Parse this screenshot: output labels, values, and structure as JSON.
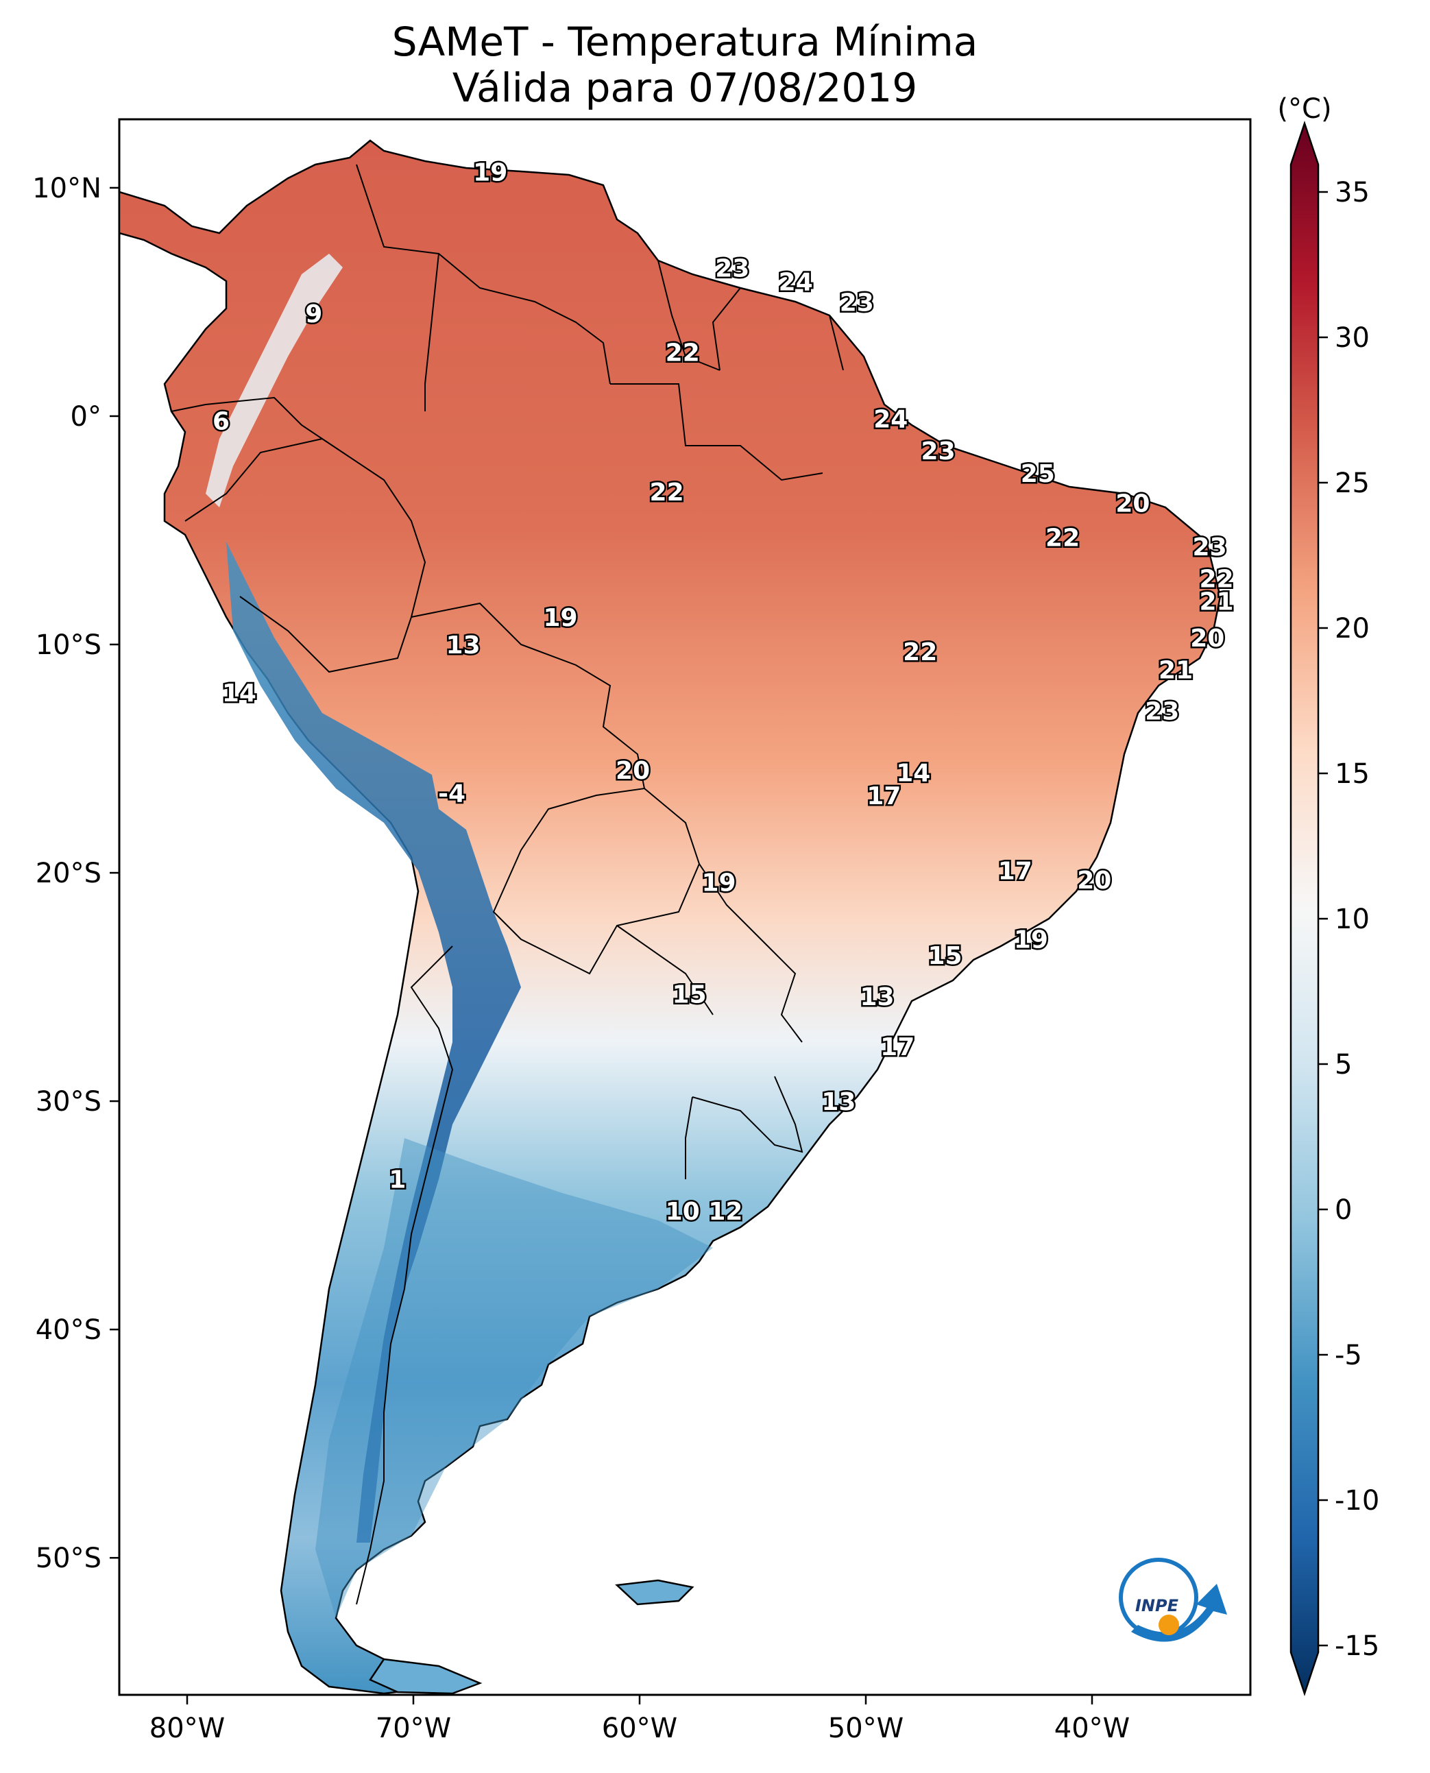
{
  "title": {
    "line1": "SAMeT - Temperatura Mínima",
    "line2": "Válida para 07/08/2019"
  },
  "colorbar": {
    "unit": "(°C)",
    "ticks": [
      "35",
      "30",
      "25",
      "20",
      "15",
      "10",
      "5",
      "0",
      "-5",
      "-10",
      "-15"
    ],
    "tick_values": [
      35,
      30,
      25,
      20,
      15,
      10,
      5,
      0,
      -5,
      -10,
      -15
    ],
    "range": [
      -17,
      37
    ],
    "colors": [
      "#053061",
      "#2166ac",
      "#4393c3",
      "#92c5de",
      "#d1e5f0",
      "#f7f7f7",
      "#fddbc7",
      "#f4a582",
      "#d6604d",
      "#b2182b",
      "#67001f"
    ]
  },
  "axes": {
    "lon_labels": [
      "80°W",
      "70°W",
      "60°W",
      "50°W",
      "40°W"
    ],
    "lon_values": [
      -80,
      -70,
      -60,
      -50,
      -40
    ],
    "lat_labels": [
      "10°N",
      "0°",
      "10°S",
      "20°S",
      "30°S",
      "40°S",
      "50°S"
    ],
    "lat_values": [
      10,
      0,
      -10,
      -20,
      -30,
      -40,
      -50
    ],
    "lon_range": [
      -83,
      -33
    ],
    "lat_range": [
      -56,
      13
    ]
  },
  "logo": {
    "text": "INPE",
    "name": "inpe-logo"
  },
  "station_values": [
    {
      "lon": -66.6,
      "lat": 10.7,
      "value": "19"
    },
    {
      "lon": -55.9,
      "lat": 6.5,
      "value": "23"
    },
    {
      "lon": -53.1,
      "lat": 5.9,
      "value": "24"
    },
    {
      "lon": -50.4,
      "lat": 5.0,
      "value": "23"
    },
    {
      "lon": -74.4,
      "lat": 4.5,
      "value": "9"
    },
    {
      "lon": -58.1,
      "lat": 2.8,
      "value": "22"
    },
    {
      "lon": -78.5,
      "lat": -0.2,
      "value": "6"
    },
    {
      "lon": -48.9,
      "lat": -0.1,
      "value": "24"
    },
    {
      "lon": -46.8,
      "lat": -1.5,
      "value": "23"
    },
    {
      "lon": -42.4,
      "lat": -2.5,
      "value": "25"
    },
    {
      "lon": -58.8,
      "lat": -3.3,
      "value": "22"
    },
    {
      "lon": -38.2,
      "lat": -3.8,
      "value": "20"
    },
    {
      "lon": -41.3,
      "lat": -5.3,
      "value": "22"
    },
    {
      "lon": -34.8,
      "lat": -5.7,
      "value": "23"
    },
    {
      "lon": -34.5,
      "lat": -7.1,
      "value": "22"
    },
    {
      "lon": -34.5,
      "lat": -8.1,
      "value": "21"
    },
    {
      "lon": -63.5,
      "lat": -8.8,
      "value": "19"
    },
    {
      "lon": -34.9,
      "lat": -9.7,
      "value": "20"
    },
    {
      "lon": -67.8,
      "lat": -10.0,
      "value": "13"
    },
    {
      "lon": -47.6,
      "lat": -10.3,
      "value": "22"
    },
    {
      "lon": -36.3,
      "lat": -11.1,
      "value": "21"
    },
    {
      "lon": -77.7,
      "lat": -12.1,
      "value": "14"
    },
    {
      "lon": -36.9,
      "lat": -12.9,
      "value": "23"
    },
    {
      "lon": -60.3,
      "lat": -15.5,
      "value": "20"
    },
    {
      "lon": -47.9,
      "lat": -15.6,
      "value": "14"
    },
    {
      "lon": -49.2,
      "lat": -16.6,
      "value": "17"
    },
    {
      "lon": -68.3,
      "lat": -16.5,
      "value": "-4"
    },
    {
      "lon": -43.4,
      "lat": -19.9,
      "value": "17"
    },
    {
      "lon": -39.9,
      "lat": -20.3,
      "value": "20"
    },
    {
      "lon": -56.5,
      "lat": -20.4,
      "value": "19"
    },
    {
      "lon": -42.7,
      "lat": -22.9,
      "value": "19"
    },
    {
      "lon": -46.5,
      "lat": -23.6,
      "value": "15"
    },
    {
      "lon": -57.8,
      "lat": -25.3,
      "value": "15"
    },
    {
      "lon": -49.5,
      "lat": -25.4,
      "value": "13"
    },
    {
      "lon": -48.6,
      "lat": -27.6,
      "value": "17"
    },
    {
      "lon": -51.2,
      "lat": -30.0,
      "value": "13"
    },
    {
      "lon": -70.7,
      "lat": -33.4,
      "value": "1"
    },
    {
      "lon": -58.1,
      "lat": -34.8,
      "value": "10"
    },
    {
      "lon": -56.2,
      "lat": -34.8,
      "value": "12"
    }
  ]
}
